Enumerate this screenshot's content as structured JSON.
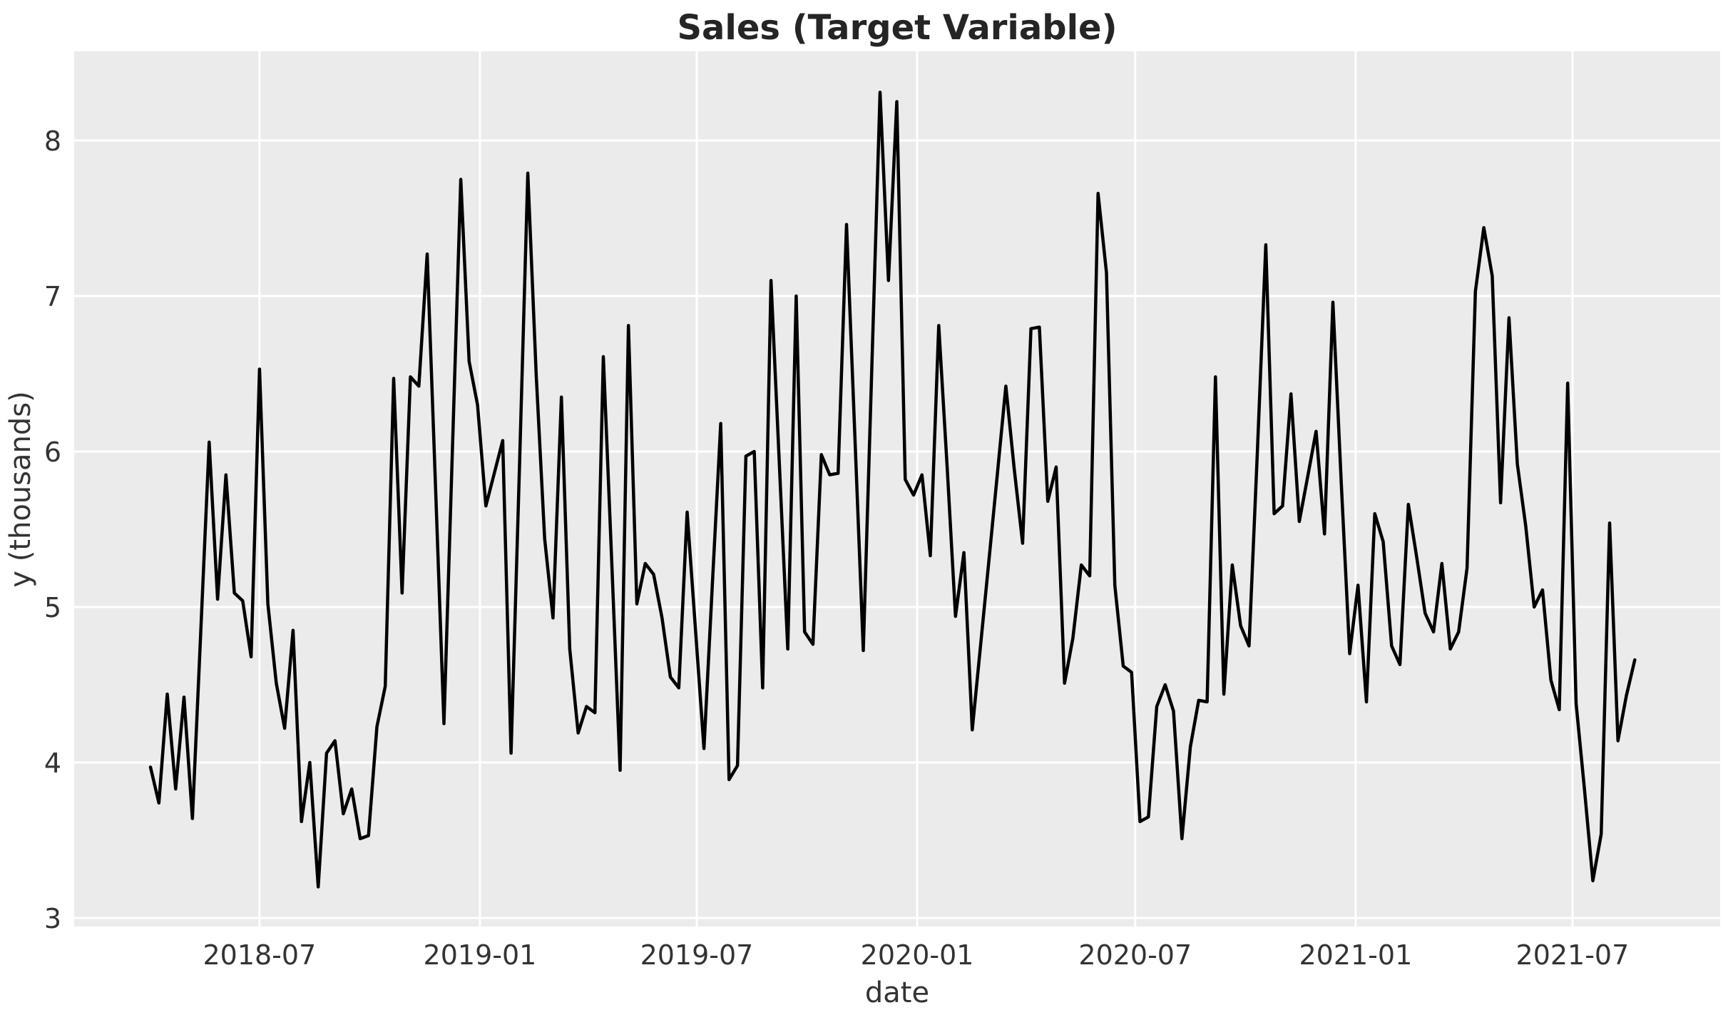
{
  "chart_data": {
    "type": "line",
    "title": "Sales (Target Variable)",
    "xlabel": "date",
    "ylabel": "y (thousands)",
    "series_name": "sales",
    "start_date": "2018-04-01",
    "frequency": "weekly",
    "values": [
      3.97,
      3.74,
      4.44,
      3.83,
      4.42,
      3.64,
      4.85,
      6.06,
      5.05,
      5.85,
      5.09,
      5.04,
      4.68,
      6.53,
      5.02,
      4.51,
      4.22,
      4.85,
      3.62,
      4.0,
      3.2,
      4.06,
      4.14,
      3.67,
      3.83,
      3.51,
      3.53,
      4.23,
      4.49,
      6.47,
      5.09,
      6.48,
      6.42,
      7.27,
      5.76,
      4.25,
      6.0,
      7.75,
      6.58,
      6.3,
      5.65,
      5.86,
      6.07,
      4.06,
      5.9,
      7.79,
      6.49,
      5.44,
      4.93,
      6.35,
      4.73,
      4.19,
      4.36,
      4.32,
      6.61,
      5.3,
      3.95,
      6.81,
      5.02,
      5.28,
      5.21,
      4.93,
      4.55,
      4.48,
      5.61,
      4.85,
      4.09,
      5.14,
      6.18,
      3.89,
      3.98,
      5.97,
      6.0,
      4.48,
      7.1,
      5.91,
      4.73,
      7.0,
      4.84,
      4.76,
      5.98,
      5.85,
      5.86,
      7.46,
      6.1,
      4.72,
      6.5,
      8.31,
      7.1,
      8.25,
      5.82,
      5.72,
      5.85,
      5.33,
      6.81,
      5.9,
      4.94,
      5.35,
      4.21,
      4.76,
      5.31,
      5.86,
      6.42,
      5.89,
      5.41,
      6.79,
      6.8,
      5.68,
      5.9,
      4.51,
      4.8,
      5.27,
      5.2,
      7.66,
      7.15,
      5.14,
      4.62,
      4.58,
      3.62,
      3.65,
      4.36,
      4.5,
      4.33,
      3.51,
      4.1,
      4.4,
      4.39,
      6.48,
      4.44,
      5.27,
      4.88,
      4.75,
      6.0,
      7.33,
      5.6,
      5.65,
      6.37,
      5.55,
      5.84,
      6.13,
      5.47,
      6.96,
      5.8,
      4.7,
      5.14,
      4.39,
      5.6,
      5.42,
      4.75,
      4.63,
      5.66,
      5.32,
      4.96,
      4.84,
      5.28,
      4.73,
      4.84,
      5.25,
      7.03,
      7.44,
      7.13,
      5.67,
      6.86,
      5.92,
      5.52,
      5.0,
      5.11,
      4.53,
      4.34,
      6.44,
      4.38,
      3.83,
      3.24,
      3.54,
      5.54,
      4.14,
      4.43,
      4.66
    ],
    "xticks": [
      {
        "label": "2018-07",
        "day_offset": 91
      },
      {
        "label": "2019-01",
        "day_offset": 275
      },
      {
        "label": "2019-07",
        "day_offset": 456
      },
      {
        "label": "2020-01",
        "day_offset": 640
      },
      {
        "label": "2020-07",
        "day_offset": 822
      },
      {
        "label": "2021-01",
        "day_offset": 1006
      },
      {
        "label": "2021-07",
        "day_offset": 1187
      }
    ],
    "yticks": [
      3,
      4,
      5,
      6,
      7,
      8
    ],
    "ylim": [
      2.94,
      8.57
    ],
    "grid": true,
    "legend": "none",
    "colors": {
      "line": "#000000",
      "plot_background": "#ebebeb",
      "gridline": "#ffffff",
      "tick_text": "#333333",
      "title_text": "#252525"
    }
  }
}
